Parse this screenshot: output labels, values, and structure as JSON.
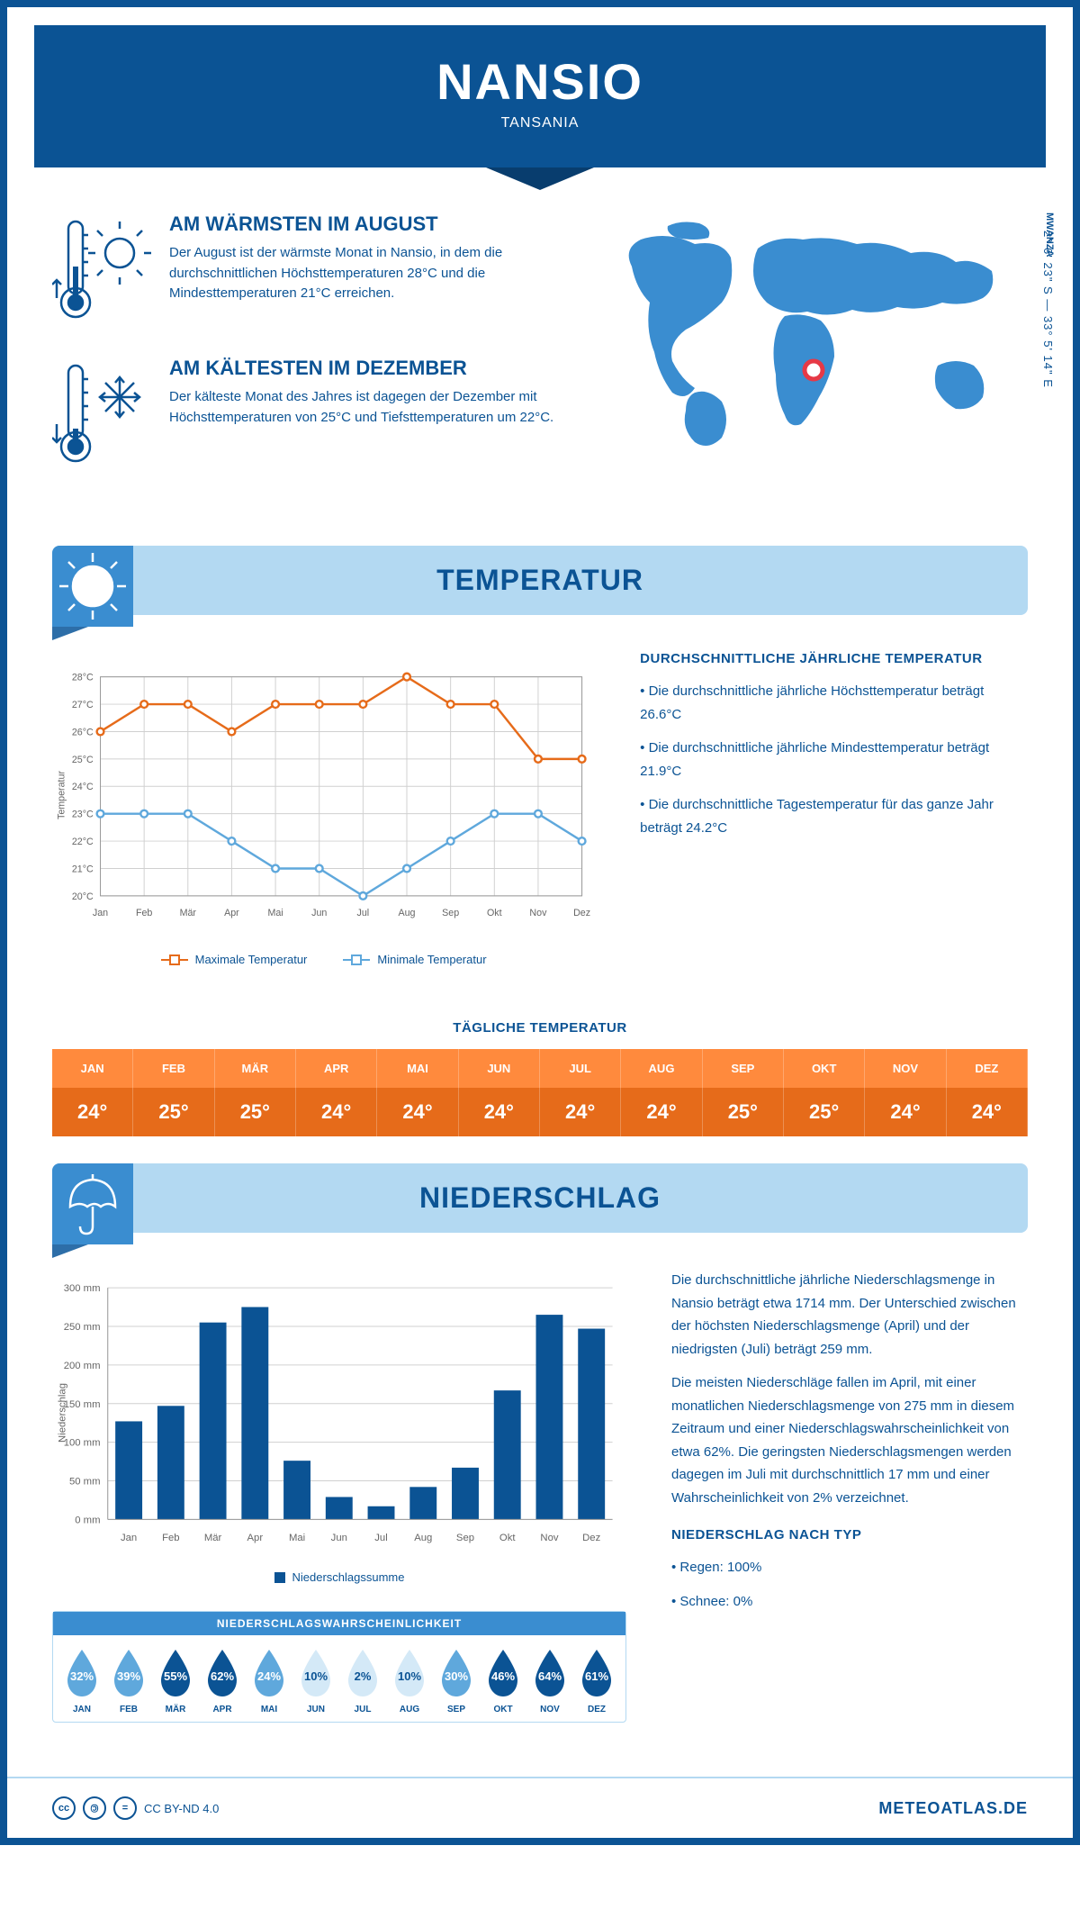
{
  "header": {
    "city": "NANSIO",
    "country": "TANSANIA"
  },
  "coords": "2° 6' 23\" S — 33° 5' 14\" E",
  "region": "MWANZA",
  "warmest": {
    "title": "AM WÄRMSTEN IM AUGUST",
    "text": "Der August ist der wärmste Monat in Nansio, in dem die durchschnittlichen Höchsttemperaturen 28°C und die Mindesttemperaturen 21°C erreichen."
  },
  "coldest": {
    "title": "AM KÄLTESTEN IM DEZEMBER",
    "text": "Der kälteste Monat des Jahres ist dagegen der Dezember mit Höchsttemperaturen von 25°C und Tiefsttemperaturen um 22°C."
  },
  "temp_section": {
    "title": "TEMPERATUR",
    "chart": {
      "type": "line",
      "months": [
        "Jan",
        "Feb",
        "Mär",
        "Apr",
        "Mai",
        "Jun",
        "Jul",
        "Aug",
        "Sep",
        "Okt",
        "Nov",
        "Dez"
      ],
      "max_values": [
        26,
        27,
        27,
        26,
        27,
        27,
        27,
        28,
        27,
        27,
        25,
        25
      ],
      "min_values": [
        23,
        23,
        23,
        22,
        21,
        21,
        20,
        21,
        22,
        23,
        23,
        22
      ],
      "max_color": "#e66b1a",
      "min_color": "#5fa8dc",
      "ylim": [
        20,
        28
      ],
      "y_ticks": [
        "20°C",
        "21°C",
        "22°C",
        "23°C",
        "24°C",
        "25°C",
        "26°C",
        "27°C",
        "28°C"
      ],
      "ylabel": "Temperatur",
      "grid_color": "#d0d0d0",
      "background": "#ffffff",
      "legend_max": "Maximale Temperatur",
      "legend_min": "Minimale Temperatur"
    },
    "sidebar": {
      "title": "DURCHSCHNITTLICHE JÄHRLICHE TEMPERATUR",
      "bullets": [
        "• Die durchschnittliche jährliche Höchsttemperatur beträgt 26.6°C",
        "• Die durchschnittliche jährliche Mindesttemperatur beträgt 21.9°C",
        "• Die durchschnittliche Tagestemperatur für das ganze Jahr beträgt 24.2°C"
      ]
    },
    "daily_title": "TÄGLICHE TEMPERATUR",
    "daily_months": [
      "JAN",
      "FEB",
      "MÄR",
      "APR",
      "MAI",
      "JUN",
      "JUL",
      "AUG",
      "SEP",
      "OKT",
      "NOV",
      "DEZ"
    ],
    "daily_values": [
      "24°",
      "25°",
      "25°",
      "24°",
      "24°",
      "24°",
      "24°",
      "24°",
      "25°",
      "25°",
      "24°",
      "24°"
    ],
    "header_bg": "#ff8a3d",
    "value_bg": "#e66b1a"
  },
  "precip_section": {
    "title": "NIEDERSCHLAG",
    "chart": {
      "type": "bar",
      "months": [
        "Jan",
        "Feb",
        "Mär",
        "Apr",
        "Mai",
        "Jun",
        "Jul",
        "Aug",
        "Sep",
        "Okt",
        "Nov",
        "Dez"
      ],
      "values": [
        127,
        147,
        255,
        275,
        76,
        29,
        17,
        42,
        67,
        167,
        265,
        247
      ],
      "bar_color": "#0b5394",
      "ylim": [
        0,
        300
      ],
      "ytick_step": 50,
      "y_ticks": [
        "0 mm",
        "50 mm",
        "100 mm",
        "150 mm",
        "200 mm",
        "250 mm",
        "300 mm"
      ],
      "ylabel": "Niederschlag",
      "grid_color": "#d0d0d0",
      "legend": "Niederschlagssumme"
    },
    "text1": "Die durchschnittliche jährliche Niederschlagsmenge in Nansio beträgt etwa 1714 mm. Der Unterschied zwischen der höchsten Niederschlagsmenge (April) und der niedrigsten (Juli) beträgt 259 mm.",
    "text2": "Die meisten Niederschläge fallen im April, mit einer monatlichen Niederschlagsmenge von 275 mm in diesem Zeitraum und einer Niederschlagswahrscheinlichkeit von etwa 62%. Die geringsten Niederschlagsmengen werden dagegen im Juli mit durchschnittlich 17 mm und einer Wahrscheinlichkeit von 2% verzeichnet.",
    "type_title": "NIEDERSCHLAG NACH TYP",
    "type_bullets": [
      "• Regen: 100%",
      "• Schnee: 0%"
    ],
    "prob": {
      "title": "NIEDERSCHLAGSWAHRSCHEINLICHKEIT",
      "months": [
        "JAN",
        "FEB",
        "MÄR",
        "APR",
        "MAI",
        "JUN",
        "JUL",
        "AUG",
        "SEP",
        "OKT",
        "NOV",
        "DEZ"
      ],
      "values": [
        32,
        39,
        55,
        62,
        24,
        10,
        2,
        10,
        30,
        46,
        64,
        61
      ],
      "color_scale": {
        "low": "#d4e9f7",
        "mid": "#5fa8dc",
        "high": "#0b5394"
      }
    }
  },
  "footer": {
    "license": "CC BY-ND 4.0",
    "brand": "METEOATLAS.DE"
  },
  "colors": {
    "primary": "#0b5394",
    "light_blue": "#b3d9f2",
    "mid_blue": "#3a8dd0",
    "orange": "#e66b1a",
    "orange_light": "#ff8a3d"
  }
}
